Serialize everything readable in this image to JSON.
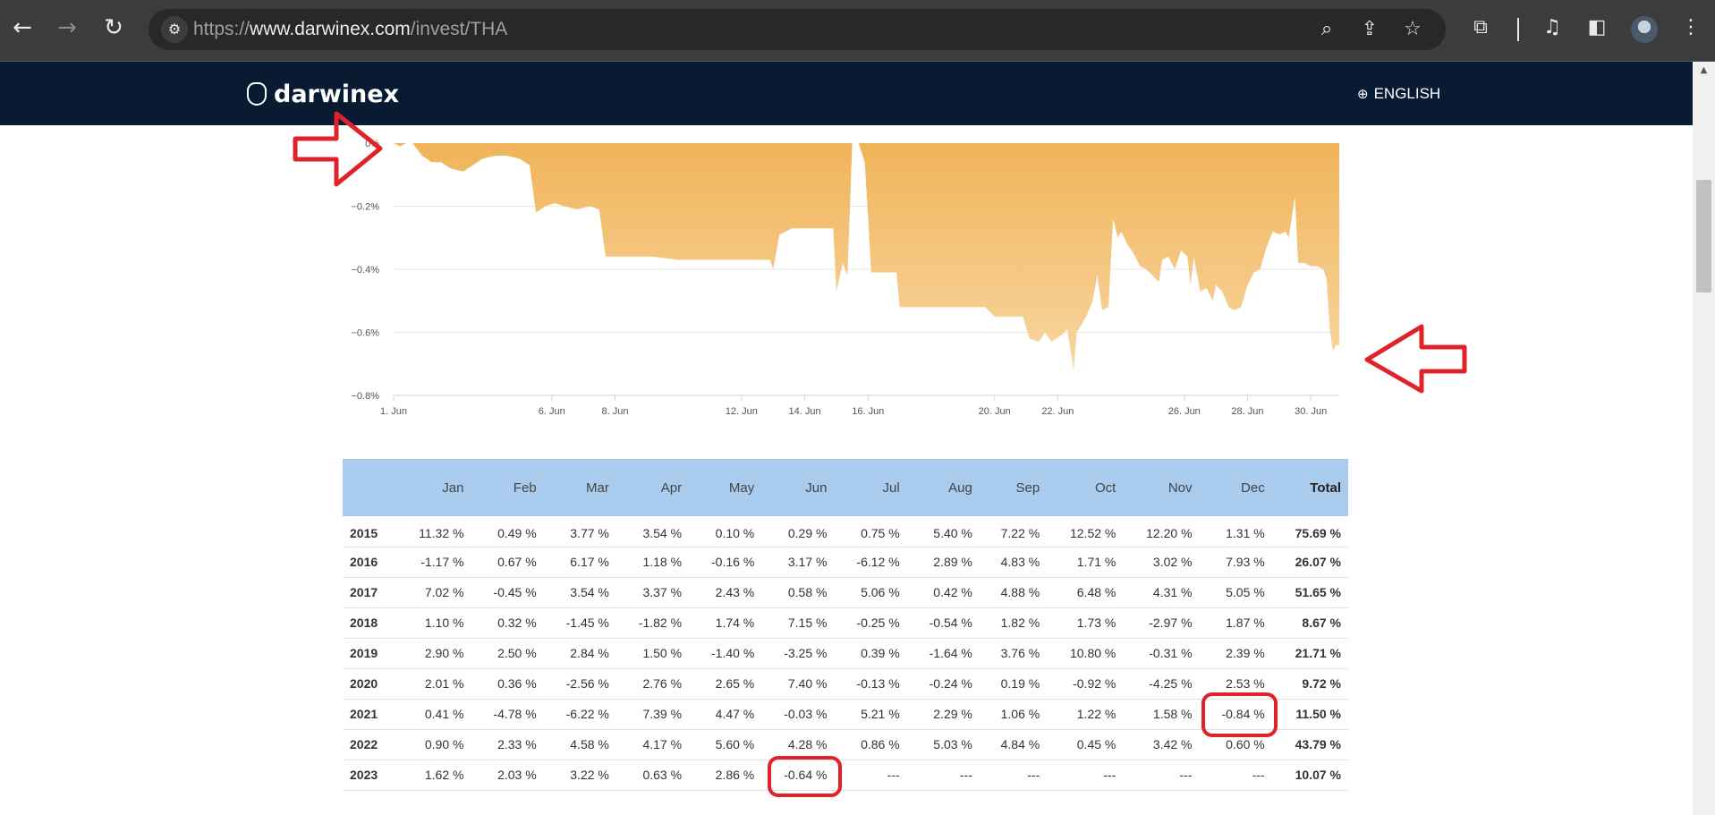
{
  "browser": {
    "url_scheme": "https://",
    "url_host": "www.darwinex.com",
    "url_path": "/invest/THA",
    "icons": {
      "back": "back-arrow-icon",
      "forward": "forward-arrow-icon",
      "reload": "reload-icon",
      "site_info": "site-info-icon",
      "zoom": "zoom-icon",
      "share": "share-icon",
      "bookmark": "star-icon",
      "extensions": "puzzle-icon",
      "media": "media-control-icon",
      "side_panel": "side-panel-icon",
      "menu": "kebab-menu-icon"
    }
  },
  "site": {
    "logo_text": "darwinex",
    "language": "ENGLISH",
    "brand_color": "#081b33"
  },
  "chart_data": {
    "type": "area",
    "fill_color": "#f0b45a",
    "y_ticks": [
      {
        "value": 0,
        "label": "0%"
      },
      {
        "value": -0.2,
        "label": "−0.2%"
      },
      {
        "value": -0.4,
        "label": "−0.4%"
      },
      {
        "value": -0.6,
        "label": "−0.6%"
      },
      {
        "value": -0.8,
        "label": "−0.8%"
      }
    ],
    "x_ticks": [
      {
        "day": 1,
        "label": "1. Jun"
      },
      {
        "day": 6,
        "label": "6. Jun"
      },
      {
        "day": 8,
        "label": "8. Jun"
      },
      {
        "day": 12,
        "label": "12. Jun"
      },
      {
        "day": 14,
        "label": "14. Jun"
      },
      {
        "day": 16,
        "label": "16. Jun"
      },
      {
        "day": 20,
        "label": "20. Jun"
      },
      {
        "day": 22,
        "label": "22. Jun"
      },
      {
        "day": 26,
        "label": "26. Jun"
      },
      {
        "day": 28,
        "label": "28. Jun"
      },
      {
        "day": 30,
        "label": "30. Jun"
      }
    ],
    "ylim": [
      -0.8,
      0
    ],
    "xlim": [
      1,
      30.9
    ],
    "grid": true,
    "series": [
      {
        "points": [
          [
            1.0,
            0.0
          ],
          [
            1.2,
            -0.01
          ],
          [
            1.4,
            0.0
          ],
          [
            1.6,
            0.0
          ],
          [
            1.9,
            -0.04
          ],
          [
            2.2,
            -0.06
          ],
          [
            2.5,
            -0.06
          ],
          [
            2.8,
            -0.08
          ],
          [
            3.2,
            -0.09
          ],
          [
            3.5,
            -0.07
          ],
          [
            3.8,
            -0.05
          ],
          [
            4.2,
            -0.04
          ],
          [
            4.6,
            -0.04
          ],
          [
            5.0,
            -0.05
          ],
          [
            5.3,
            -0.07
          ],
          [
            5.5,
            -0.22
          ],
          [
            5.8,
            -0.2
          ],
          [
            6.1,
            -0.19
          ],
          [
            6.4,
            -0.2
          ],
          [
            6.8,
            -0.21
          ],
          [
            7.2,
            -0.2
          ],
          [
            7.5,
            -0.21
          ],
          [
            7.7,
            -0.36
          ],
          [
            8.4,
            -0.36
          ],
          [
            9.2,
            -0.36
          ],
          [
            10.0,
            -0.37
          ],
          [
            11.0,
            -0.37
          ],
          [
            12.0,
            -0.37
          ],
          [
            12.9,
            -0.37
          ],
          [
            13.0,
            -0.4
          ],
          [
            13.2,
            -0.29
          ],
          [
            13.6,
            -0.27
          ],
          [
            14.3,
            -0.27
          ],
          [
            14.9,
            -0.27
          ],
          [
            15.0,
            -0.47
          ],
          [
            15.2,
            -0.38
          ],
          [
            15.35,
            -0.42
          ],
          [
            15.5,
            0.0
          ],
          [
            15.7,
            0.0
          ],
          [
            15.9,
            -0.06
          ],
          [
            16.1,
            -0.41
          ],
          [
            16.5,
            -0.41
          ],
          [
            16.9,
            -0.41
          ],
          [
            17.0,
            -0.52
          ],
          [
            17.5,
            -0.52
          ],
          [
            18.5,
            -0.52
          ],
          [
            19.7,
            -0.52
          ],
          [
            20.0,
            -0.55
          ],
          [
            20.9,
            -0.55
          ],
          [
            21.1,
            -0.62
          ],
          [
            21.4,
            -0.63
          ],
          [
            21.6,
            -0.6
          ],
          [
            21.8,
            -0.63
          ],
          [
            22.1,
            -0.61
          ],
          [
            22.3,
            -0.59
          ],
          [
            22.5,
            -0.72
          ],
          [
            22.6,
            -0.6
          ],
          [
            22.9,
            -0.55
          ],
          [
            23.1,
            -0.5
          ],
          [
            23.25,
            -0.42
          ],
          [
            23.4,
            -0.53
          ],
          [
            23.6,
            -0.52
          ],
          [
            23.75,
            -0.24
          ],
          [
            23.9,
            -0.3
          ],
          [
            24.0,
            -0.28
          ],
          [
            24.2,
            -0.32
          ],
          [
            24.4,
            -0.35
          ],
          [
            24.6,
            -0.39
          ],
          [
            24.8,
            -0.4
          ],
          [
            25.0,
            -0.42
          ],
          [
            25.2,
            -0.44
          ],
          [
            25.3,
            -0.37
          ],
          [
            25.5,
            -0.36
          ],
          [
            25.7,
            -0.4
          ],
          [
            25.9,
            -0.34
          ],
          [
            26.1,
            -0.36
          ],
          [
            26.2,
            -0.45
          ],
          [
            26.3,
            -0.36
          ],
          [
            26.5,
            -0.47
          ],
          [
            26.7,
            -0.46
          ],
          [
            26.9,
            -0.5
          ],
          [
            27.0,
            -0.45
          ],
          [
            27.2,
            -0.47
          ],
          [
            27.4,
            -0.52
          ],
          [
            27.6,
            -0.53
          ],
          [
            27.8,
            -0.52
          ],
          [
            28.0,
            -0.45
          ],
          [
            28.2,
            -0.41
          ],
          [
            28.4,
            -0.4
          ],
          [
            28.6,
            -0.33
          ],
          [
            28.8,
            -0.28
          ],
          [
            29.0,
            -0.29
          ],
          [
            29.2,
            -0.28
          ],
          [
            29.3,
            -0.3
          ],
          [
            29.5,
            -0.17
          ],
          [
            29.6,
            -0.38
          ],
          [
            29.8,
            -0.38
          ],
          [
            30.0,
            -0.39
          ],
          [
            30.2,
            -0.39
          ],
          [
            30.4,
            -0.4
          ],
          [
            30.5,
            -0.43
          ],
          [
            30.6,
            -0.59
          ],
          [
            30.7,
            -0.66
          ],
          [
            30.8,
            -0.64
          ],
          [
            30.9,
            -0.64
          ]
        ]
      }
    ]
  },
  "table": {
    "headers": [
      "",
      "Jan",
      "Feb",
      "Mar",
      "Apr",
      "May",
      "Jun",
      "Jul",
      "Aug",
      "Sep",
      "Oct",
      "Nov",
      "Dec",
      "Total"
    ],
    "rows": [
      [
        "2015",
        "11.32 %",
        "0.49 %",
        "3.77 %",
        "3.54 %",
        "0.10 %",
        "0.29 %",
        "0.75 %",
        "5.40 %",
        "7.22 %",
        "12.52 %",
        "12.20 %",
        "1.31 %",
        "75.69 %"
      ],
      [
        "2016",
        "-1.17 %",
        "0.67 %",
        "6.17 %",
        "1.18 %",
        "-0.16 %",
        "3.17 %",
        "-6.12 %",
        "2.89 %",
        "4.83 %",
        "1.71 %",
        "3.02 %",
        "7.93 %",
        "26.07 %"
      ],
      [
        "2017",
        "7.02 %",
        "-0.45 %",
        "3.54 %",
        "3.37 %",
        "2.43 %",
        "0.58 %",
        "5.06 %",
        "0.42 %",
        "4.88 %",
        "6.48 %",
        "4.31 %",
        "5.05 %",
        "51.65 %"
      ],
      [
        "2018",
        "1.10 %",
        "0.32 %",
        "-1.45 %",
        "-1.82 %",
        "1.74 %",
        "7.15 %",
        "-0.25 %",
        "-0.54 %",
        "1.82 %",
        "1.73 %",
        "-2.97 %",
        "1.87 %",
        "8.67 %"
      ],
      [
        "2019",
        "2.90 %",
        "2.50 %",
        "2.84 %",
        "1.50 %",
        "-1.40 %",
        "-3.25 %",
        "0.39 %",
        "-1.64 %",
        "3.76 %",
        "10.80 %",
        "-0.31 %",
        "2.39 %",
        "21.71 %"
      ],
      [
        "2020",
        "2.01 %",
        "0.36 %",
        "-2.56 %",
        "2.76 %",
        "2.65 %",
        "7.40 %",
        "-0.13 %",
        "-0.24 %",
        "0.19 %",
        "-0.92 %",
        "-4.25 %",
        "2.53 %",
        "9.72 %"
      ],
      [
        "2021",
        "0.41 %",
        "-4.78 %",
        "-6.22 %",
        "7.39 %",
        "4.47 %",
        "-0.03 %",
        "5.21 %",
        "2.29 %",
        "1.06 %",
        "1.22 %",
        "1.58 %",
        "-0.84 %",
        "11.50 %"
      ],
      [
        "2022",
        "0.90 %",
        "2.33 %",
        "4.58 %",
        "4.17 %",
        "5.60 %",
        "4.28 %",
        "0.86 %",
        "5.03 %",
        "4.84 %",
        "0.45 %",
        "3.42 %",
        "0.60 %",
        "43.79 %"
      ],
      [
        "2023",
        "1.62 %",
        "2.03 %",
        "3.22 %",
        "0.63 %",
        "2.86 %",
        "-0.64 %",
        "---",
        "---",
        "---",
        "---",
        "---",
        "---",
        "10.07 %"
      ]
    ]
  },
  "annotations": {
    "color": "#e0232b",
    "highlighted_cells": [
      {
        "year": "2021",
        "month": "Dec",
        "value": "-0.84 %"
      },
      {
        "year": "2023",
        "month": "Jun",
        "value": "-0.64 %"
      }
    ]
  }
}
